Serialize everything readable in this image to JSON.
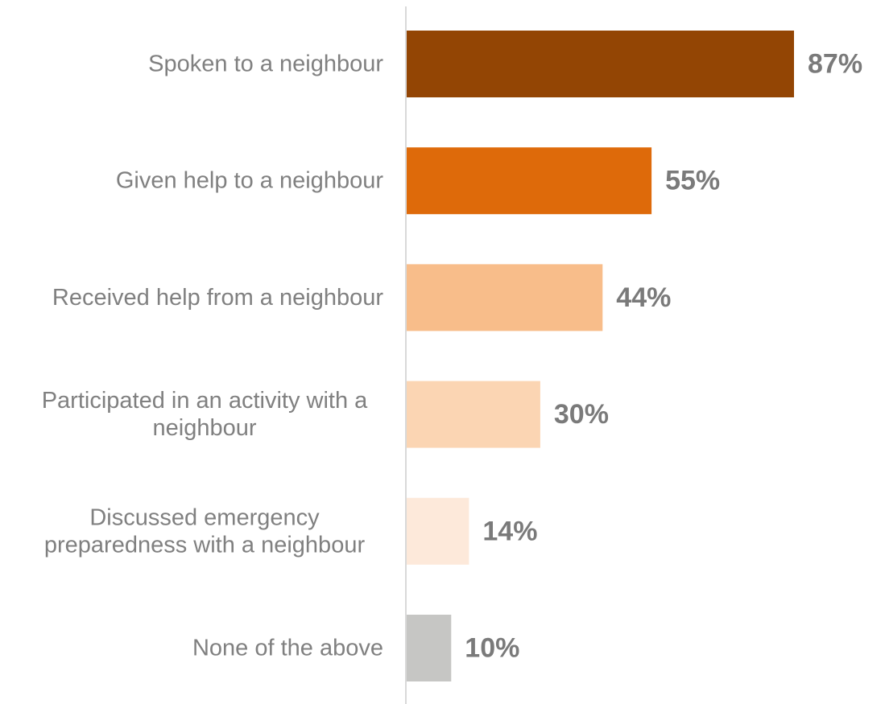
{
  "chart_data": {
    "type": "bar",
    "orientation": "horizontal",
    "categories": [
      [
        "Spoken to a neighbour"
      ],
      [
        "Given help to a neighbour"
      ],
      [
        "Received help from a neighbour"
      ],
      [
        "Participated in an activity with a",
        "neighbour"
      ],
      [
        "Discussed emergency",
        "preparedness with a neighbour"
      ],
      [
        "None of the above"
      ]
    ],
    "values": [
      87,
      55,
      44,
      30,
      14,
      10
    ],
    "value_labels": [
      "87%",
      "55%",
      "44%",
      "30%",
      "14%",
      "10%"
    ],
    "colors": [
      "#934504",
      "#de6a0a",
      "#f8bd8a",
      "#fbd5b3",
      "#fde9da",
      "#c6c6c4"
    ],
    "axis_color": "#d9d9d9",
    "xlim": [
      0,
      100
    ],
    "grid": false,
    "legend": "none"
  }
}
